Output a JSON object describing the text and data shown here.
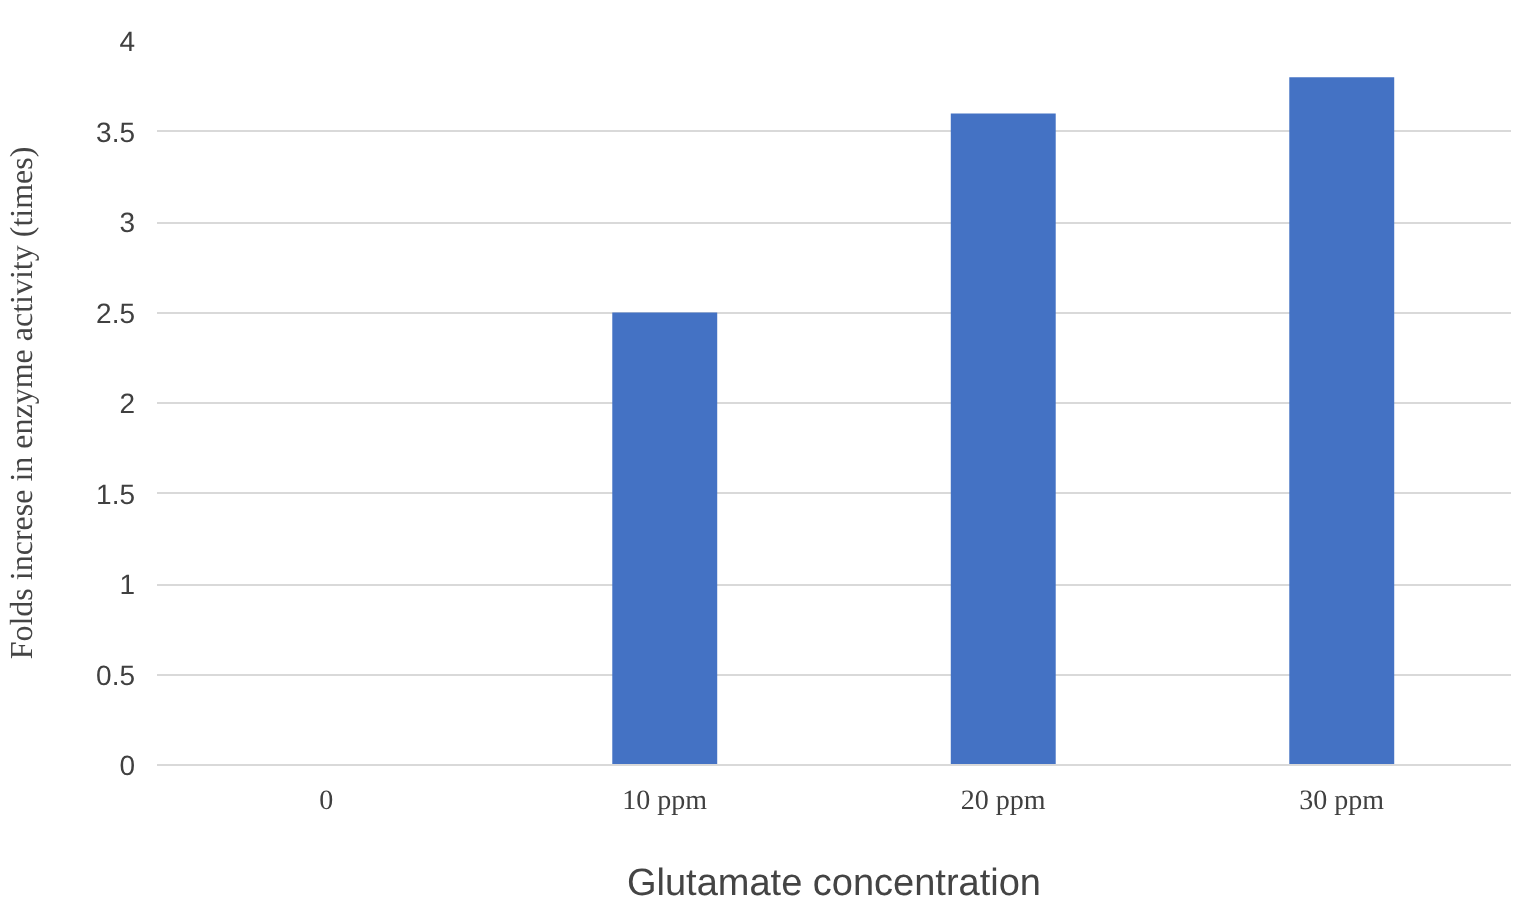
{
  "chart_data": {
    "type": "bar",
    "xlabel": "Glutamate concentration",
    "ylabel": "Folds increse in enzyme activity (times)",
    "categories": [
      "0",
      "10 ppm",
      "20 ppm",
      "30 ppm"
    ],
    "values": [
      0,
      2.5,
      3.6,
      3.8
    ],
    "color": "#4472c4",
    "ylim": [
      0,
      4
    ],
    "yticks": [
      0,
      0.5,
      1,
      1.5,
      2,
      2.5,
      3,
      3.5,
      4
    ],
    "grid": "y"
  }
}
